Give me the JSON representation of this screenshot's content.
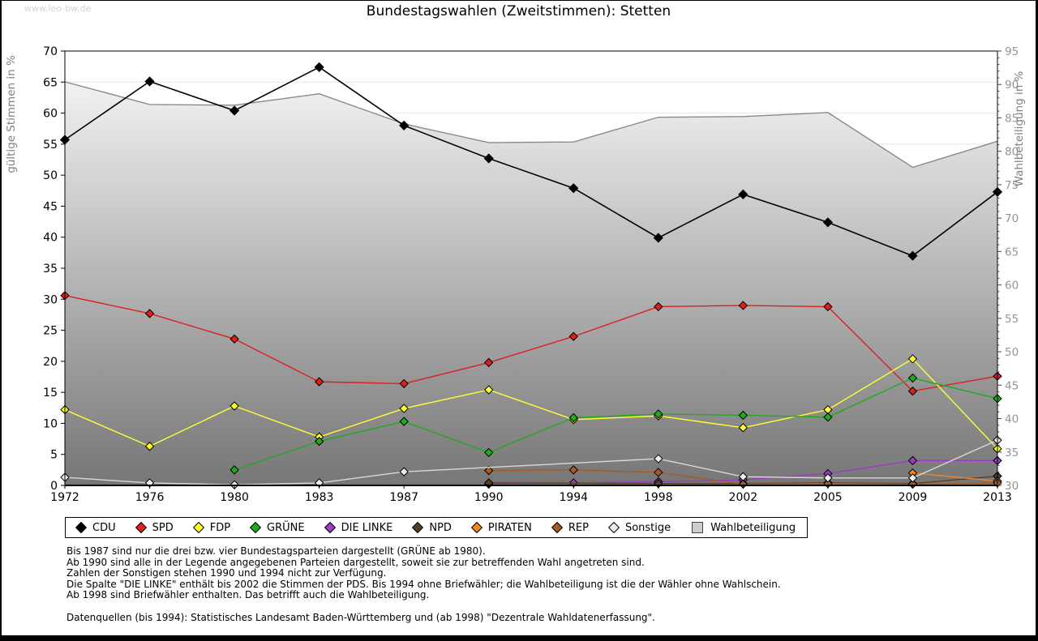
{
  "watermark": "www.leo-bw.de",
  "title": "Bundestagswahlen (Zweitstimmen): Stetten",
  "chart_data": {
    "type": "line",
    "categories": [
      "1972",
      "1976",
      "1980",
      "1983",
      "1987",
      "1990",
      "1994",
      "1998",
      "2002",
      "2005",
      "2009",
      "2013"
    ],
    "axis_left": {
      "title": "gültige Stimmen in %",
      "min": 0,
      "max": 70,
      "step": 5
    },
    "axis_right": {
      "title": "Wahlbeteiligung in %",
      "min": 30,
      "max": 95,
      "step": 5
    },
    "grid": true,
    "legend_position": "bottom",
    "series": [
      {
        "id": "cdu",
        "name": "CDU",
        "color": "#000000",
        "axis": "left",
        "values": [
          55.7,
          65.1,
          60.4,
          67.4,
          58.0,
          52.7,
          47.9,
          39.9,
          46.9,
          42.4,
          37.0,
          47.3
        ]
      },
      {
        "id": "spd",
        "name": "SPD",
        "color": "#dd1f1f",
        "axis": "left",
        "values": [
          30.6,
          27.7,
          23.6,
          16.7,
          16.4,
          19.8,
          24.0,
          28.8,
          29.0,
          28.8,
          15.2,
          17.6
        ]
      },
      {
        "id": "fdp",
        "name": "FDP",
        "color": "#ffff33",
        "axis": "left",
        "values": [
          12.2,
          6.3,
          12.8,
          7.8,
          12.4,
          15.4,
          10.6,
          11.2,
          9.3,
          12.2,
          20.4,
          5.9
        ]
      },
      {
        "id": "gruene",
        "name": "GRÜNE",
        "color": "#1faa1f",
        "axis": "left",
        "values": [
          null,
          null,
          2.5,
          7.1,
          10.3,
          5.3,
          10.9,
          11.5,
          11.3,
          11.0,
          17.3,
          14.0
        ]
      },
      {
        "id": "die-linke",
        "name": "DIE LINKE",
        "color": "#9b3cc4",
        "axis": "left",
        "values": [
          null,
          null,
          null,
          null,
          null,
          0.2,
          0.4,
          0.6,
          0.9,
          1.9,
          4.0,
          4.0
        ]
      },
      {
        "id": "npd",
        "name": "NPD",
        "color": "#554022",
        "axis": "left",
        "values": [
          null,
          null,
          null,
          null,
          null,
          0.4,
          null,
          0.3,
          0.3,
          0.4,
          0.3,
          1.5
        ]
      },
      {
        "id": "piraten",
        "name": "PIRATEN",
        "color": "#ef862a",
        "axis": "left",
        "values": [
          null,
          null,
          null,
          null,
          null,
          null,
          null,
          null,
          null,
          null,
          2.0,
          0.7
        ]
      },
      {
        "id": "rep",
        "name": "REP",
        "color": "#a65b26",
        "axis": "left",
        "values": [
          null,
          null,
          null,
          null,
          null,
          2.4,
          2.5,
          2.1,
          0.2,
          0.3,
          0.2,
          0.4
        ]
      },
      {
        "id": "sonstige",
        "name": "Sonstige",
        "color": "#ececec",
        "line_color": "#d9d9d9",
        "axis": "left",
        "values": [
          1.3,
          0.4,
          0.1,
          0.4,
          2.2,
          null,
          null,
          4.3,
          1.4,
          1.2,
          1.2,
          7.3
        ]
      }
    ],
    "turnout": {
      "id": "wahlbeteiligung",
      "name": "Wahlbeteiligung",
      "axis": "right",
      "line_color": "#8a8a8a",
      "area_top_color": "#fbfbfb",
      "area_bottom_color": "#767676",
      "values": [
        90.4,
        87.0,
        86.9,
        88.6,
        84.1,
        81.3,
        81.4,
        85.1,
        85.2,
        85.8,
        77.6,
        81.5
      ]
    }
  },
  "legend": {
    "items": [
      {
        "id": "cdu",
        "label": "CDU",
        "color": "#000000",
        "shape": "diamond"
      },
      {
        "id": "spd",
        "label": "SPD",
        "color": "#dd1f1f",
        "shape": "diamond"
      },
      {
        "id": "fdp",
        "label": "FDP",
        "color": "#ffff33",
        "shape": "diamond"
      },
      {
        "id": "gruene",
        "label": "GRÜNE",
        "color": "#1faa1f",
        "shape": "diamond"
      },
      {
        "id": "die-linke",
        "label": "DIE LINKE",
        "color": "#9b3cc4",
        "shape": "diamond"
      },
      {
        "id": "npd",
        "label": "NPD",
        "color": "#554022",
        "shape": "diamond"
      },
      {
        "id": "piraten",
        "label": "PIRATEN",
        "color": "#ef862a",
        "shape": "diamond"
      },
      {
        "id": "rep",
        "label": "REP",
        "color": "#a65b26",
        "shape": "diamond"
      },
      {
        "id": "sonstige",
        "label": "Sonstige",
        "color": "#ececec",
        "shape": "diamond"
      },
      {
        "id": "wahlbeteiligung",
        "label": "Wahlbeteiligung",
        "color": "#cccccc",
        "shape": "square"
      }
    ]
  },
  "footnotes": [
    "Bis 1987 sind nur die drei bzw. vier Bundestagsparteien dargestellt (GRÜNE ab 1980).",
    "Ab 1990 sind alle in der Legende angegebenen Parteien dargestellt, soweit sie zur betreffenden Wahl angetreten sind.",
    "Zahlen der Sonstigen stehen 1990 und 1994 nicht zur Verfügung.",
    "Die Spalte \"DIE LINKE\" enthält bis 2002 die Stimmen der PDS. Bis 1994 ohne Briefwähler; die Wahlbeteiligung ist die der Wähler ohne Wahlschein.",
    "Ab 1998 sind Briefwähler enthalten. Das betrifft auch die Wahlbeteiligung.",
    "",
    "Datenquellen (bis 1994): Statistisches Landesamt Baden-Württemberg und (ab 1998) \"Dezentrale Wahldatenerfassung\"."
  ]
}
